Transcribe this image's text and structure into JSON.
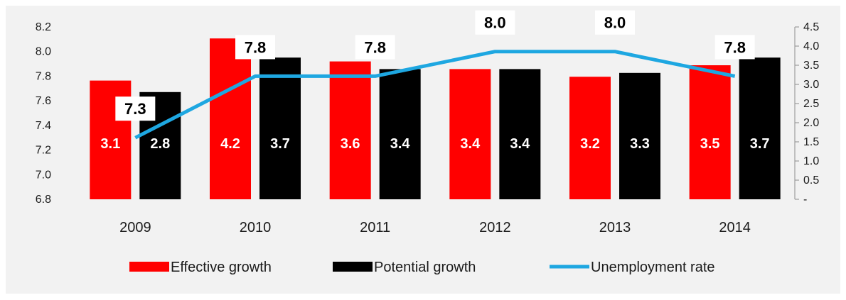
{
  "chart_data": {
    "type": "bar",
    "categories": [
      "2009",
      "2010",
      "2011",
      "2012",
      "2013",
      "2014"
    ],
    "series": [
      {
        "name": "Effective growth",
        "values": [
          3.1,
          4.2,
          3.6,
          3.4,
          3.2,
          3.5
        ],
        "color": "#ff0000",
        "label_color": "#ffffff",
        "axis": "right"
      },
      {
        "name": "Potential growth",
        "values": [
          2.8,
          3.7,
          3.4,
          3.4,
          3.3,
          3.7
        ],
        "color": "#000000",
        "label_color": "#ffffff",
        "axis": "right"
      },
      {
        "name": "Unemployment rate",
        "type": "line",
        "values": [
          7.3,
          7.8,
          7.8,
          8.0,
          8.0,
          7.8
        ],
        "labels": [
          "7.3",
          "7.8",
          "7.8",
          "8.0",
          "8.0",
          "7.8"
        ],
        "color": "#1ea7e1",
        "axis": "left"
      }
    ],
    "y_left": {
      "ticks": [
        "6.8",
        "7.0",
        "7.2",
        "7.4",
        "7.6",
        "7.8",
        "8.0",
        "8.2"
      ],
      "ylim": [
        6.8,
        8.2
      ]
    },
    "y_right": {
      "ticks": [
        "-",
        "0.5",
        "1.0",
        "1.5",
        "2.0",
        "2.5",
        "3.0",
        "3.5",
        "4.0",
        "4.5"
      ],
      "ylim": [
        0,
        4.5
      ]
    },
    "grid": false,
    "legend_position": "bottom",
    "background": "#f2f2f2"
  }
}
